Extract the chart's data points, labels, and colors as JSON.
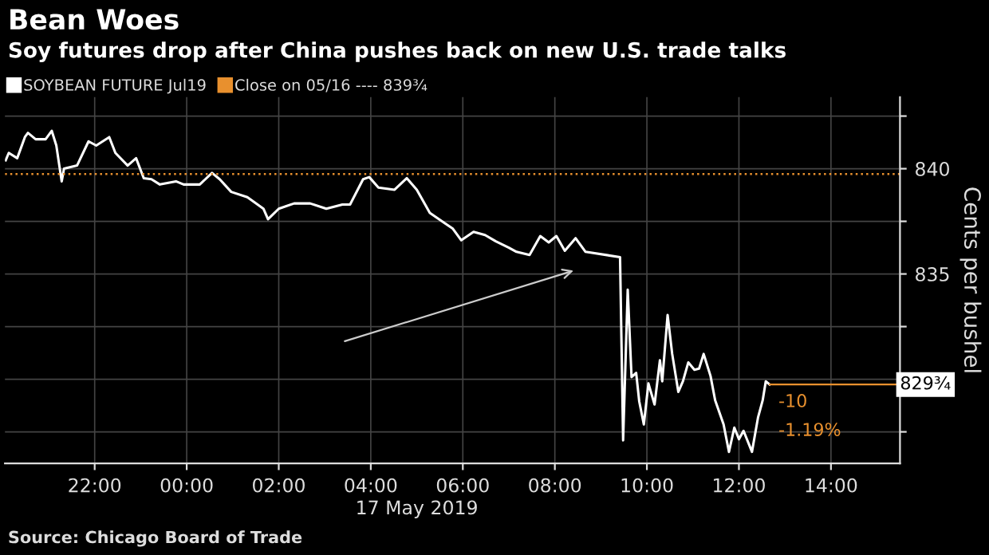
{
  "chart_data": {
    "type": "line",
    "title": "Bean Woes",
    "subtitle": "Soy futures drop after China pushes back on new U.S. trade talks",
    "xlabel": "17 May 2019",
    "ylabel": "Cents per bushel",
    "series": [
      {
        "name": "SOYBEAN FUTURE Jul19",
        "color": "#ffffff",
        "x": [
          "2019-05-16T20:04",
          "2019-05-16T20:08",
          "2019-05-16T20:19",
          "2019-05-16T20:29",
          "2019-05-16T20:33",
          "2019-05-16T20:43",
          "2019-05-16T20:56",
          "2019-05-16T21:04",
          "2019-05-16T21:10",
          "2019-05-16T21:17",
          "2019-05-16T21:20",
          "2019-05-16T21:37",
          "2019-05-16T21:52",
          "2019-05-16T22:02",
          "2019-05-16T22:19",
          "2019-05-16T22:27",
          "2019-05-16T22:43",
          "2019-05-16T22:54",
          "2019-05-16T23:04",
          "2019-05-16T23:14",
          "2019-05-16T23:25",
          "2019-05-16T23:46",
          "2019-05-16T23:56",
          "2019-05-17T00:17",
          "2019-05-17T00:33",
          "2019-05-17T00:43",
          "2019-05-17T00:58",
          "2019-05-17T01:19",
          "2019-05-17T01:40",
          "2019-05-17T01:46",
          "2019-05-17T02:00",
          "2019-05-17T02:20",
          "2019-05-17T02:41",
          "2019-05-17T03:02",
          "2019-05-17T03:23",
          "2019-05-17T03:33",
          "2019-05-17T03:50",
          "2019-05-17T03:58",
          "2019-05-17T04:10",
          "2019-05-17T04:31",
          "2019-05-17T04:47",
          "2019-05-17T05:00",
          "2019-05-17T05:17",
          "2019-05-17T05:37",
          "2019-05-17T05:47",
          "2019-05-17T05:58",
          "2019-05-17T06:14",
          "2019-05-17T06:29",
          "2019-05-17T06:43",
          "2019-05-17T07:00",
          "2019-05-17T07:10",
          "2019-05-17T07:27",
          "2019-05-17T07:41",
          "2019-05-17T07:52",
          "2019-05-17T08:02",
          "2019-05-17T08:13",
          "2019-05-17T08:27",
          "2019-05-17T08:40",
          "2019-05-17T09:25",
          "2019-05-17T09:29",
          "2019-05-17T09:35",
          "2019-05-17T09:40",
          "2019-05-17T09:46",
          "2019-05-17T09:50",
          "2019-05-17T09:56",
          "2019-05-17T10:02",
          "2019-05-17T10:10",
          "2019-05-17T10:17",
          "2019-05-17T10:20",
          "2019-05-17T10:27",
          "2019-05-17T10:33",
          "2019-05-17T10:41",
          "2019-05-17T10:47",
          "2019-05-17T10:54",
          "2019-05-17T11:02",
          "2019-05-17T11:08",
          "2019-05-17T11:14",
          "2019-05-17T11:23",
          "2019-05-17T11:29",
          "2019-05-17T11:40",
          "2019-05-17T11:47",
          "2019-05-17T11:54",
          "2019-05-17T12:00",
          "2019-05-17T12:06",
          "2019-05-17T12:17",
          "2019-05-17T12:25",
          "2019-05-17T12:31",
          "2019-05-17T12:35",
          "2019-05-17T12:40"
        ],
        "values": [
          840.4,
          840.75,
          840.5,
          841.5,
          841.7,
          841.4,
          841.4,
          841.8,
          841.1,
          839.4,
          840.0,
          840.15,
          841.3,
          841.1,
          841.5,
          840.75,
          840.15,
          840.5,
          839.55,
          839.5,
          839.25,
          839.4,
          839.25,
          839.25,
          839.8,
          839.5,
          838.9,
          838.65,
          838.1,
          837.6,
          838.1,
          838.35,
          838.35,
          838.1,
          838.3,
          838.3,
          839.5,
          839.6,
          839.1,
          839.0,
          839.55,
          839.0,
          837.9,
          837.4,
          837.15,
          836.6,
          837.0,
          836.85,
          836.55,
          836.25,
          836.05,
          835.9,
          836.8,
          836.5,
          836.8,
          836.1,
          836.7,
          836.05,
          835.8,
          827.1,
          834.25,
          830.1,
          830.3,
          828.95,
          827.85,
          829.8,
          828.8,
          830.9,
          829.9,
          833.05,
          831.2,
          829.4,
          829.9,
          830.8,
          830.45,
          830.5,
          831.2,
          830.15,
          829.0,
          827.85,
          826.55,
          827.7,
          827.15,
          827.55,
          826.55,
          828.2,
          829.0,
          829.9,
          829.75
        ]
      }
    ],
    "ref_lines": [
      {
        "axis": "y",
        "value": 839.75,
        "label": "Close on 05/16 ---- 839¾",
        "color": "#e8902e",
        "line_style": "dotted"
      }
    ],
    "xlim": [
      "2019-05-16T20:03",
      "2019-05-17T15:30"
    ],
    "ylim": [
      826,
      843.4
    ],
    "xticks": [
      {
        "value": "2019-05-16T22:00",
        "label": "22:00"
      },
      {
        "value": "2019-05-17T00:00",
        "label": "00:00"
      },
      {
        "value": "2019-05-17T02:00",
        "label": "02:00"
      },
      {
        "value": "2019-05-17T04:00",
        "label": "04:00"
      },
      {
        "value": "2019-05-17T06:00",
        "label": "06:00"
      },
      {
        "value": "2019-05-17T08:00",
        "label": "08:00"
      },
      {
        "value": "2019-05-17T10:00",
        "label": "10:00"
      },
      {
        "value": "2019-05-17T12:00",
        "label": "12:00"
      },
      {
        "value": "2019-05-17T14:00",
        "label": "14:00"
      }
    ],
    "yticks": [
      {
        "value": 827.5,
        "label": null
      },
      {
        "value": 830,
        "label": null
      },
      {
        "value": 832.5,
        "label": null
      },
      835,
      {
        "value": 837.5,
        "label": null
      },
      840,
      {
        "value": 842.5,
        "label": null
      }
    ],
    "grid": true,
    "legend": "top left",
    "marker": "none",
    "line_style": "solid",
    "annotations": [
      {
        "text": "829¾",
        "x": "2019-05-17T12:40",
        "y": 829.75
      },
      {
        "text": "-10",
        "x": "2019-05-17T12:40",
        "y": 829.75
      },
      {
        "text": "-1.19%",
        "x": "2019-05-17T12:40",
        "y": 829.75
      },
      "Source: Chicago Board of Trade"
    ]
  }
}
